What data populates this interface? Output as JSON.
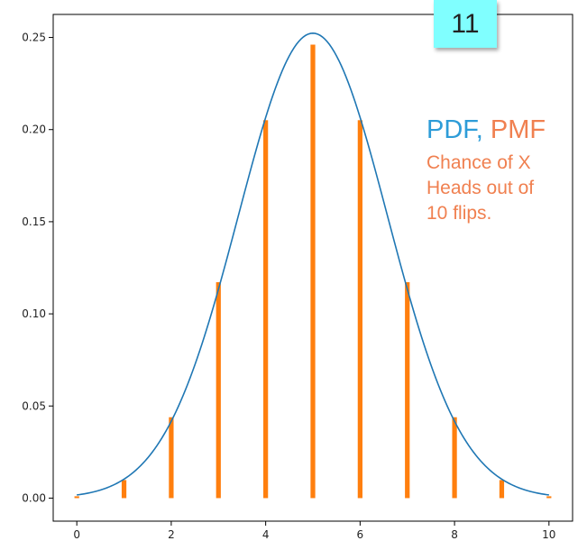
{
  "slide_number": "11",
  "legend": {
    "pdf_label": "PDF,",
    "pmf_label": "PMF",
    "description_lines": [
      "Chance of X",
      "Heads out of",
      "10 flips."
    ]
  },
  "colors": {
    "pdf": "#1f77b4",
    "pmf": "#ff7f0e",
    "pdf_text": "#2d9cd8",
    "pmf_text": "#f08050",
    "badge": "#80ffff"
  },
  "chart_data": {
    "type": "bar",
    "title": "",
    "xlabel": "",
    "ylabel": "",
    "xlim": [
      -0.5,
      10.5
    ],
    "ylim": [
      -0.0125,
      0.2625
    ],
    "x_ticks": [
      0,
      2,
      4,
      6,
      8,
      10
    ],
    "x_tick_labels": [
      "0",
      "2",
      "4",
      "6",
      "8",
      "10"
    ],
    "y_ticks": [
      0.0,
      0.05,
      0.1,
      0.15,
      0.2,
      0.25
    ],
    "y_tick_labels": [
      "0.00",
      "0.05",
      "0.10",
      "0.15",
      "0.20",
      "0.25"
    ],
    "grid": false,
    "series": [
      {
        "type": "bar",
        "x": [
          0,
          1,
          2,
          3,
          4,
          5,
          6,
          7,
          8,
          9,
          10
        ],
        "values": [
          0.001,
          0.0098,
          0.0439,
          0.1172,
          0.2051,
          0.2461,
          0.2051,
          0.1172,
          0.0439,
          0.0098,
          0.001
        ]
      },
      {
        "type": "line",
        "mean": 5,
        "std": 1.5811,
        "x_range": [
          0,
          10
        ]
      }
    ]
  }
}
